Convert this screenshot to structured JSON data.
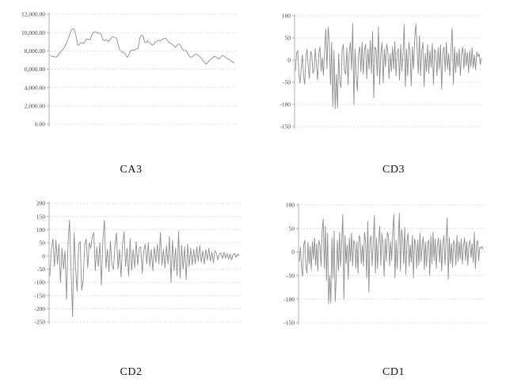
{
  "page": {
    "background_color": "#ffffff",
    "description": "Four wavelet decomposition signal charts in a 2x2 grid"
  },
  "chart_data": [
    {
      "type": "line",
      "title": "CA3",
      "xlabel": "",
      "ylabel": "",
      "ylim": [
        0,
        12000
      ],
      "ytick_step": 2000,
      "ytick_labels": [
        "0.00",
        "2,000.00",
        "4,000.00",
        "6,000.00",
        "8,000.00",
        "10,000.00",
        "12,000.00"
      ],
      "tick_format": "thousands2dp",
      "grid": "dotted-horizontal",
      "legend": "none",
      "line_color": "#8d8d8d",
      "grid_color": "#cbcbcb",
      "axis_color": "#b0b0b0",
      "label_color": "#3f3f3f",
      "values": [
        7450,
        7430,
        7400,
        7350,
        7300,
        7450,
        7700,
        7900,
        8100,
        8300,
        8600,
        9000,
        9400,
        9900,
        10300,
        10400,
        10250,
        9500,
        8600,
        8700,
        8900,
        8850,
        8800,
        9200,
        9300,
        9250,
        9200,
        9700,
        10000,
        10100,
        10050,
        9900,
        9950,
        9850,
        9300,
        9100,
        9200,
        9150,
        9000,
        9300,
        9500,
        9550,
        9450,
        9400,
        8700,
        8100,
        7950,
        7850,
        7800,
        7500,
        7300,
        7600,
        8000,
        8100,
        8050,
        8150,
        8200,
        8300,
        9400,
        9700,
        9650,
        9000,
        8900,
        9100,
        8950,
        8800,
        8600,
        8700,
        9000,
        9050,
        9150,
        9100,
        9200,
        9300,
        9400,
        9350,
        9100,
        8900,
        8800,
        8700,
        8500,
        8400,
        8600,
        8750,
        8700,
        8300,
        8100,
        8050,
        8000,
        7700,
        7400,
        7300,
        7350,
        7550,
        7650,
        7600,
        7450,
        7300,
        7100,
        6900,
        6700,
        6550,
        6800,
        7000,
        7100,
        7250,
        7400,
        7350,
        7200,
        7100,
        7300,
        7500,
        7450,
        7350,
        7200,
        7100,
        7000,
        6900,
        6800,
        6650
      ]
    },
    {
      "type": "line",
      "title": "CD3",
      "xlabel": "",
      "ylabel": "",
      "ylim": [
        -150,
        100
      ],
      "ytick_step": 50,
      "ytick_labels": [
        "-150",
        "-100",
        "-50",
        "0",
        "50",
        "100"
      ],
      "tick_format": "int",
      "grid": "dotted-horizontal",
      "legend": "none",
      "line_color": "#8d8d8d",
      "grid_color": "#cbcbcb",
      "axis_color": "#b0b0b0",
      "label_color": "#3f3f3f",
      "values": [
        -25,
        15,
        22,
        -30,
        -52,
        -18,
        12,
        -35,
        -55,
        8,
        25,
        -15,
        -42,
        20,
        12,
        -30,
        -22,
        26,
        -12,
        -45,
        15,
        30,
        -25,
        6,
        -35,
        20,
        70,
        -20,
        75,
        42,
        -55,
        40,
        -105,
        22,
        -110,
        -32,
        -108,
        15,
        -50,
        -62,
        25,
        36,
        -25,
        -32,
        28,
        -55,
        18,
        40,
        -22,
        82,
        -100,
        25,
        -35,
        -70,
        15,
        30,
        -26,
        40,
        -32,
        20,
        36,
        -42,
        25,
        -20,
        45,
        -30,
        65,
        -85,
        30,
        22,
        -36,
        75,
        -55,
        15,
        40,
        -52,
        25,
        -15,
        36,
        20,
        -42,
        15,
        -26,
        30,
        -20,
        42,
        -36,
        18,
        26,
        -45,
        35,
        -25,
        15,
        80,
        -60,
        25,
        -35,
        40,
        16,
        -58,
        30,
        -20,
        50,
        82,
        25,
        -30,
        55,
        -35,
        20,
        40,
        -60,
        15,
        -26,
        35,
        -30,
        22,
        -16,
        38,
        -55,
        25,
        15,
        -35,
        28,
        -20,
        35,
        -65,
        18,
        30,
        -25,
        40,
        -20,
        15,
        -36,
        25,
        72,
        -55,
        30,
        -28,
        18,
        -15,
        26,
        -35,
        15,
        30,
        -20,
        25,
        -12,
        18,
        -28,
        22,
        -15,
        28,
        -18,
        12,
        -22,
        18,
        8,
        14,
        -10,
        6
      ]
    },
    {
      "type": "line",
      "title": "CD2",
      "xlabel": "",
      "ylabel": "",
      "ylim": [
        -250,
        200
      ],
      "ytick_step": 50,
      "ytick_labels": [
        "-250",
        "-200",
        "-150",
        "-100",
        "-50",
        "0",
        "50",
        "100",
        "150",
        "200"
      ],
      "tick_format": "int",
      "grid": "dotted-horizontal",
      "legend": "none",
      "line_color": "#8d8d8d",
      "grid_color": "#cbcbcb",
      "axis_color": "#b0b0b0",
      "label_color": "#3f3f3f",
      "values": [
        -75,
        25,
        65,
        -40,
        60,
        -30,
        45,
        -100,
        30,
        -50,
        20,
        -165,
        50,
        135,
        -60,
        -230,
        88,
        -50,
        -135,
        45,
        55,
        -130,
        -90,
        40,
        65,
        -45,
        50,
        30,
        75,
        88,
        -55,
        35,
        -40,
        50,
        -110,
        60,
        135,
        -45,
        25,
        -60,
        55,
        -35,
        -50,
        40,
        88,
        -50,
        25,
        -80,
        45,
        92,
        -40,
        30,
        -75,
        65,
        -55,
        25,
        -45,
        55,
        -35,
        30,
        35,
        -65,
        20,
        45,
        -30,
        50,
        -40,
        25,
        -55,
        35,
        -25,
        45,
        -30,
        88,
        -35,
        25,
        -45,
        40,
        -30,
        75,
        -100,
        60,
        -55,
        30,
        -75,
        92,
        -85,
        40,
        -50,
        35,
        -90,
        45,
        -40,
        30,
        -35,
        25,
        -30,
        35,
        -20,
        40,
        -25,
        20,
        -30,
        25,
        -15,
        30,
        -20,
        15,
        -25,
        20,
        10,
        -15,
        8,
        12,
        -10,
        15,
        -8,
        10,
        -12,
        8,
        -15,
        5,
        10,
        -5,
        8,
        0
      ]
    },
    {
      "type": "line",
      "title": "CD1",
      "xlabel": "",
      "ylabel": "",
      "ylim": [
        -150,
        100
      ],
      "ytick_step": 50,
      "ytick_labels": [
        "-150",
        "-100",
        "-50",
        "0",
        "50",
        "100"
      ],
      "tick_format": "int",
      "grid": "dotted-horizontal",
      "legend": "none",
      "line_color": "#8d8d8d",
      "grid_color": "#cbcbcb",
      "axis_color": "#b0b0b0",
      "label_color": "#3f3f3f",
      "values": [
        -20,
        10,
        -35,
        -52,
        15,
        25,
        -30,
        -45,
        20,
        -25,
        12,
        -38,
        22,
        -15,
        30,
        -28,
        18,
        -40,
        25,
        15,
        -30,
        45,
        70,
        -35,
        55,
        -60,
        40,
        -110,
        -50,
        -108,
        30,
        -55,
        45,
        -105,
        -52,
        25,
        -40,
        42,
        -30,
        20,
        80,
        -100,
        35,
        -25,
        15,
        -58,
        30,
        -20,
        40,
        -30,
        25,
        18,
        -35,
        22,
        -45,
        35,
        28,
        -25,
        15,
        -30,
        42,
        20,
        -55,
        65,
        -85,
        25,
        35,
        -30,
        18,
        78,
        -45,
        30,
        -35,
        22,
        55,
        -28,
        40,
        15,
        -52,
        28,
        -20,
        42,
        35,
        -30,
        22,
        -18,
        45,
        80,
        -55,
        25,
        -35,
        18,
        82,
        -40,
        48,
        30,
        -25,
        52,
        -48,
        22,
        40,
        -30,
        15,
        -22,
        35,
        -55,
        28,
        18,
        -35,
        25,
        -28,
        40,
        -20,
        15,
        32,
        -38,
        22,
        -30,
        18,
        25,
        -50,
        35,
        -25,
        42,
        -18,
        28,
        -35,
        15,
        30,
        -22,
        25,
        -40,
        18,
        35,
        -28,
        22,
        72,
        -58,
        30,
        -25,
        18,
        -32,
        25,
        15,
        -28,
        35,
        -20,
        22,
        -15,
        28,
        -25,
        12,
        30,
        -18,
        22,
        -28,
        15,
        25,
        -12,
        18,
        -22,
        42,
        -35,
        15,
        25,
        -18,
        10,
        8,
        12,
        5
      ]
    }
  ]
}
